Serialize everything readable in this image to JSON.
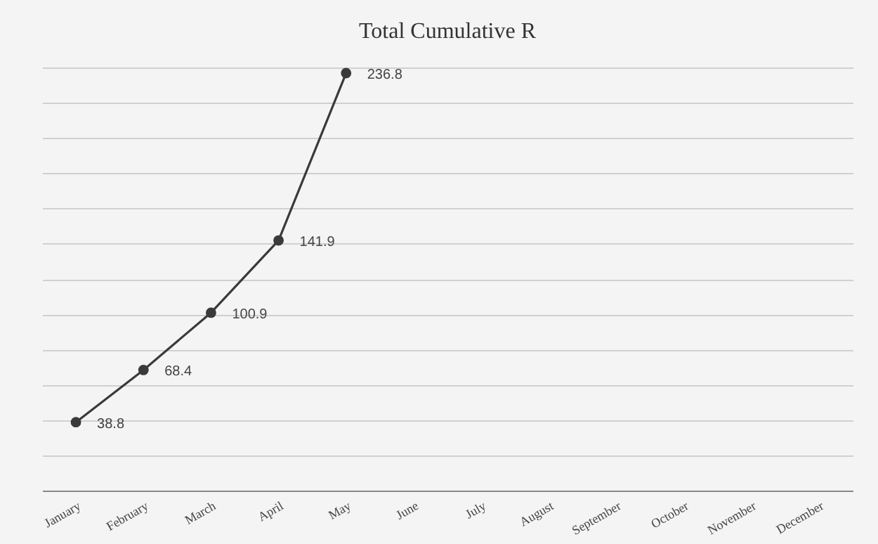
{
  "chart_data": {
    "type": "line",
    "title": "Total Cumulative R",
    "categories": [
      "January",
      "February",
      "March",
      "April",
      "May",
      "June",
      "July",
      "August",
      "September",
      "October",
      "November",
      "December"
    ],
    "values": [
      38.8,
      68.4,
      100.9,
      141.9,
      236.8,
      null,
      null,
      null,
      null,
      null,
      null,
      null
    ],
    "color": "#3a3a3a",
    "marker": "circle",
    "data_labels": true,
    "grid": "y",
    "tick_labels": "x"
  }
}
